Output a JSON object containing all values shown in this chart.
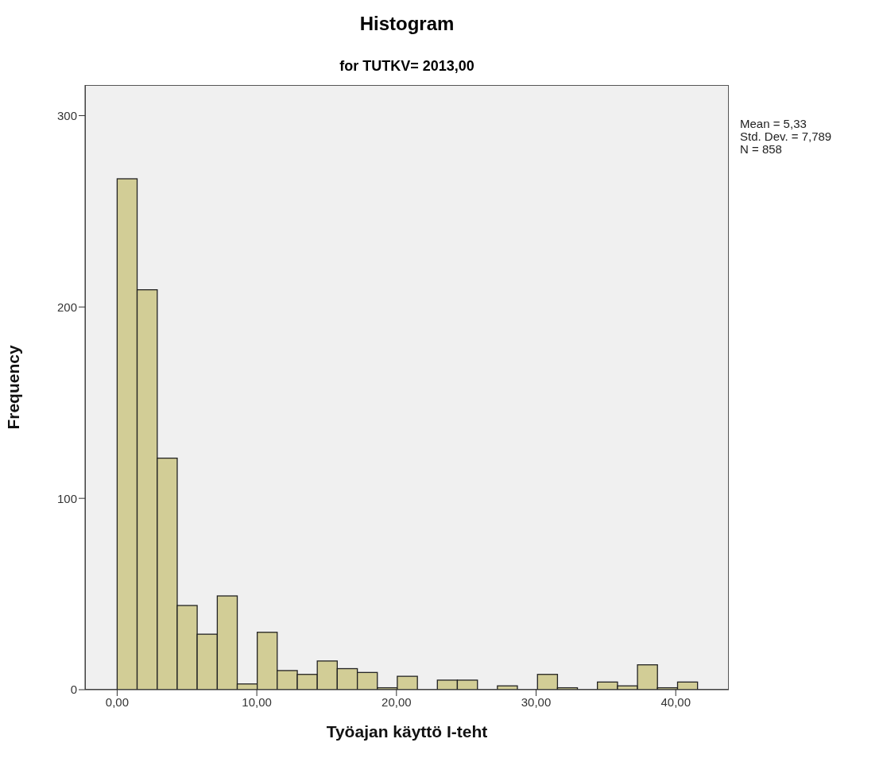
{
  "chart_data": {
    "type": "histogram",
    "title": "Histogram",
    "subtitle": "for TUTKV= 2013,00",
    "xlabel": "Työajan käyttö I-teht",
    "ylabel": "Frequency",
    "annotations": [
      "Mean = 5,33",
      "Std. Dev. = 7,789",
      "N = 858"
    ],
    "bins": [
      0,
      1.43,
      2.87,
      4.3,
      5.73,
      7.17,
      8.6,
      10.03,
      11.46,
      12.9,
      14.33,
      15.76,
      17.2,
      18.63,
      20.06,
      21.5,
      22.93,
      24.36,
      25.8,
      27.23,
      28.66,
      30.1,
      31.53,
      32.96,
      34.39,
      35.83,
      37.26,
      38.69,
      40.13,
      41.56
    ],
    "values": [
      267,
      209,
      121,
      44,
      29,
      49,
      3,
      30,
      10,
      8,
      15,
      11,
      9,
      1,
      7,
      0,
      5,
      5,
      0,
      2,
      0,
      8,
      1,
      0,
      4,
      2,
      13,
      1,
      4
    ],
    "color": "#d2cd96",
    "xlim": [
      -2.3,
      43.8
    ],
    "xticks": [
      {
        "value": 0,
        "label": "0,00"
      },
      {
        "value": 10,
        "label": "10,00"
      },
      {
        "value": 20,
        "label": "20,00"
      },
      {
        "value": 30,
        "label": "30,00"
      },
      {
        "value": 40,
        "label": "40,00"
      }
    ],
    "ylim": [
      0,
      316
    ],
    "yticks": [
      0,
      100,
      200,
      300
    ]
  }
}
